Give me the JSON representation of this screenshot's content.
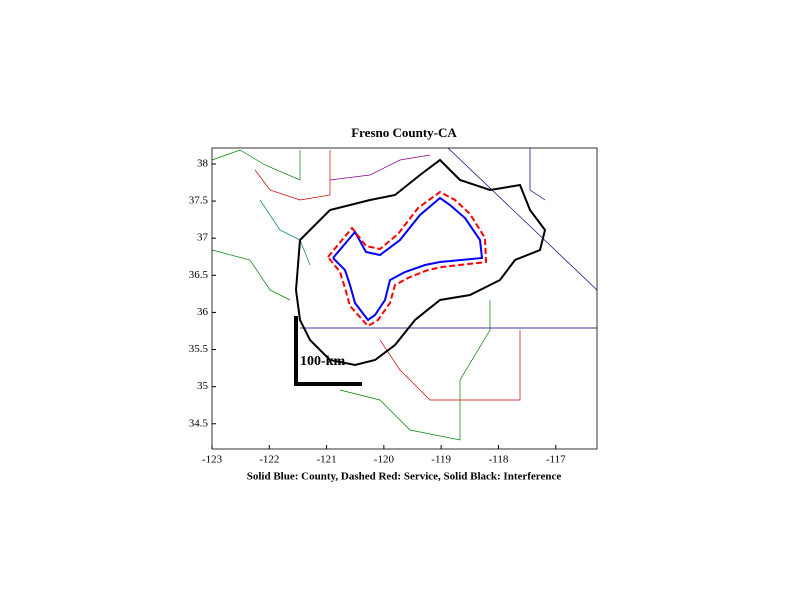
{
  "chart_data": {
    "type": "map",
    "title": "Fresno County-CA",
    "x_label": "Solid Blue: County, Dashed Red: Service, Solid Black: Interference",
    "annotation": "100-km",
    "xlim": [
      -123,
      -116.28
    ],
    "ylim": [
      34.16,
      38.215
    ],
    "xticks": [
      -123,
      -122,
      -121,
      -120,
      -119,
      -118,
      -117
    ],
    "yticks": [
      34.5,
      35,
      35.5,
      36,
      36.5,
      37,
      37.5,
      38
    ]
  }
}
